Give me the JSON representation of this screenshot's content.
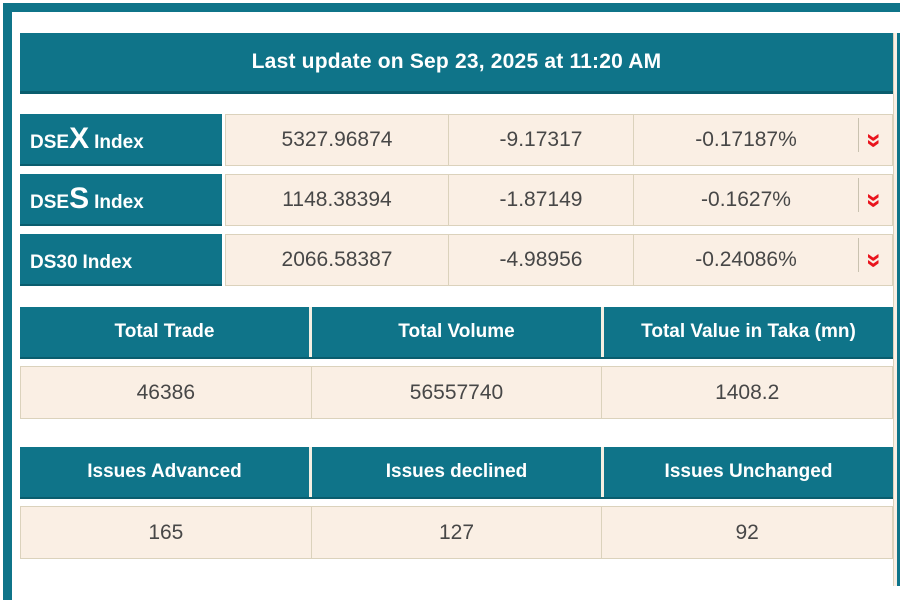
{
  "colors": {
    "teal": "#0F7489",
    "teal_dark": "#0A5D6E",
    "cream": "#FAEFE4",
    "tan_border": "#DBD2BC",
    "value_text": "#474747",
    "down_red": "#E9141D"
  },
  "header": {
    "title": "Last update on Sep 23, 2025 at 11:20 AM"
  },
  "indices": {
    "down_icon": "»",
    "rows": [
      {
        "name_prefix": "DSE",
        "name_big": "X",
        "name_rest": "Index",
        "value": "5327.96874",
        "change": "-9.17317",
        "change_pct": "-0.17187%",
        "direction": "down"
      },
      {
        "name_prefix": "DSE",
        "name_big": "S",
        "name_rest": "Index",
        "value": "1148.38394",
        "change": "-1.87149",
        "change_pct": "-0.1627%",
        "direction": "down"
      },
      {
        "name_prefix": "DS30",
        "name_big": "",
        "name_rest": "Index",
        "value": "2066.58387",
        "change": "-4.98956",
        "change_pct": "-0.24086%",
        "direction": "down"
      }
    ]
  },
  "totals": {
    "headers": [
      "Total Trade",
      "Total Volume",
      "Total Value in Taka (mn)"
    ],
    "values": [
      "46386",
      "56557740",
      "1408.2"
    ]
  },
  "issues": {
    "headers": [
      "Issues Advanced",
      "Issues declined",
      "Issues Unchanged"
    ],
    "values": [
      "165",
      "127",
      "92"
    ]
  }
}
